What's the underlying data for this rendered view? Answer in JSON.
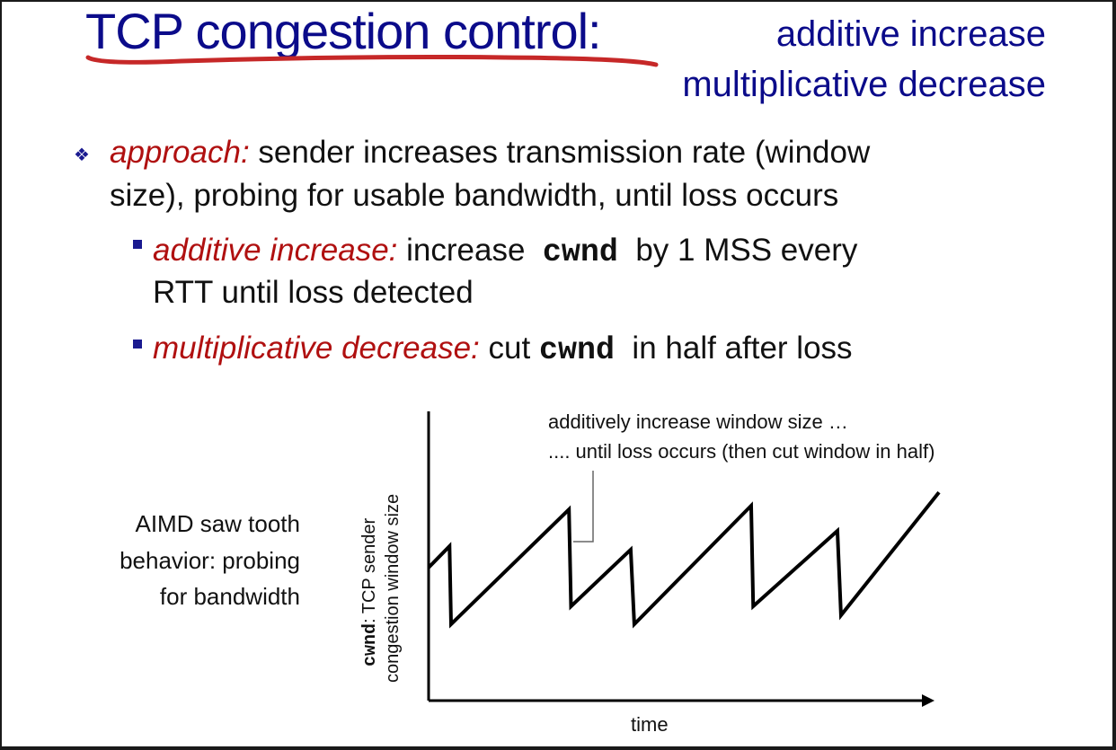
{
  "title": {
    "main": "TCP congestion control:",
    "sub1": "additive increase",
    "sub2": "multiplicative decrease"
  },
  "bullet": {
    "icon": "diamond-bullet-icon",
    "label": "approach:",
    "line1": "sender increases transmission rate (window",
    "line2": "size), probing for usable bandwidth, until loss occurs"
  },
  "sub_bullets": [
    {
      "label": "additive increase:",
      "pre": "increase",
      "code": "cwnd",
      "post": "by 1 MSS every",
      "line2": "RTT until loss detected"
    },
    {
      "label": "multiplicative decrease:",
      "pre": "cut",
      "code": "cwnd",
      "post": "in half after loss"
    }
  ],
  "side_label": [
    "AIMD saw tooth",
    "behavior: probing",
    "for bandwidth"
  ],
  "colors": {
    "title": "#0b0b8a",
    "emphasis": "#b01010",
    "underline": "#c62828"
  },
  "chart_data": {
    "type": "line",
    "title": "",
    "xlabel": "time",
    "ylabel_code": "cwnd",
    "ylabel_rest": ": TCP sender",
    "ylabel_line2": "congestion window size",
    "annotation_line1": "additively increase window size …",
    "annotation_line2": ".... until loss occurs (then cut window in half)",
    "xlim": [
      0,
      100
    ],
    "ylim": [
      0,
      100
    ],
    "grid": false,
    "series": [
      {
        "name": "cwnd",
        "points": [
          [
            0,
            46
          ],
          [
            4.1,
            53.4
          ],
          [
            4.4,
            26.4
          ],
          [
            27.5,
            66.1
          ],
          [
            27.9,
            32.6
          ],
          [
            39.6,
            52.2
          ],
          [
            40.3,
            26.4
          ],
          [
            63.2,
            67.4
          ],
          [
            63.6,
            32.6
          ],
          [
            80.1,
            58.7
          ],
          [
            80.8,
            29.5
          ],
          [
            100,
            72
          ]
        ]
      }
    ]
  }
}
